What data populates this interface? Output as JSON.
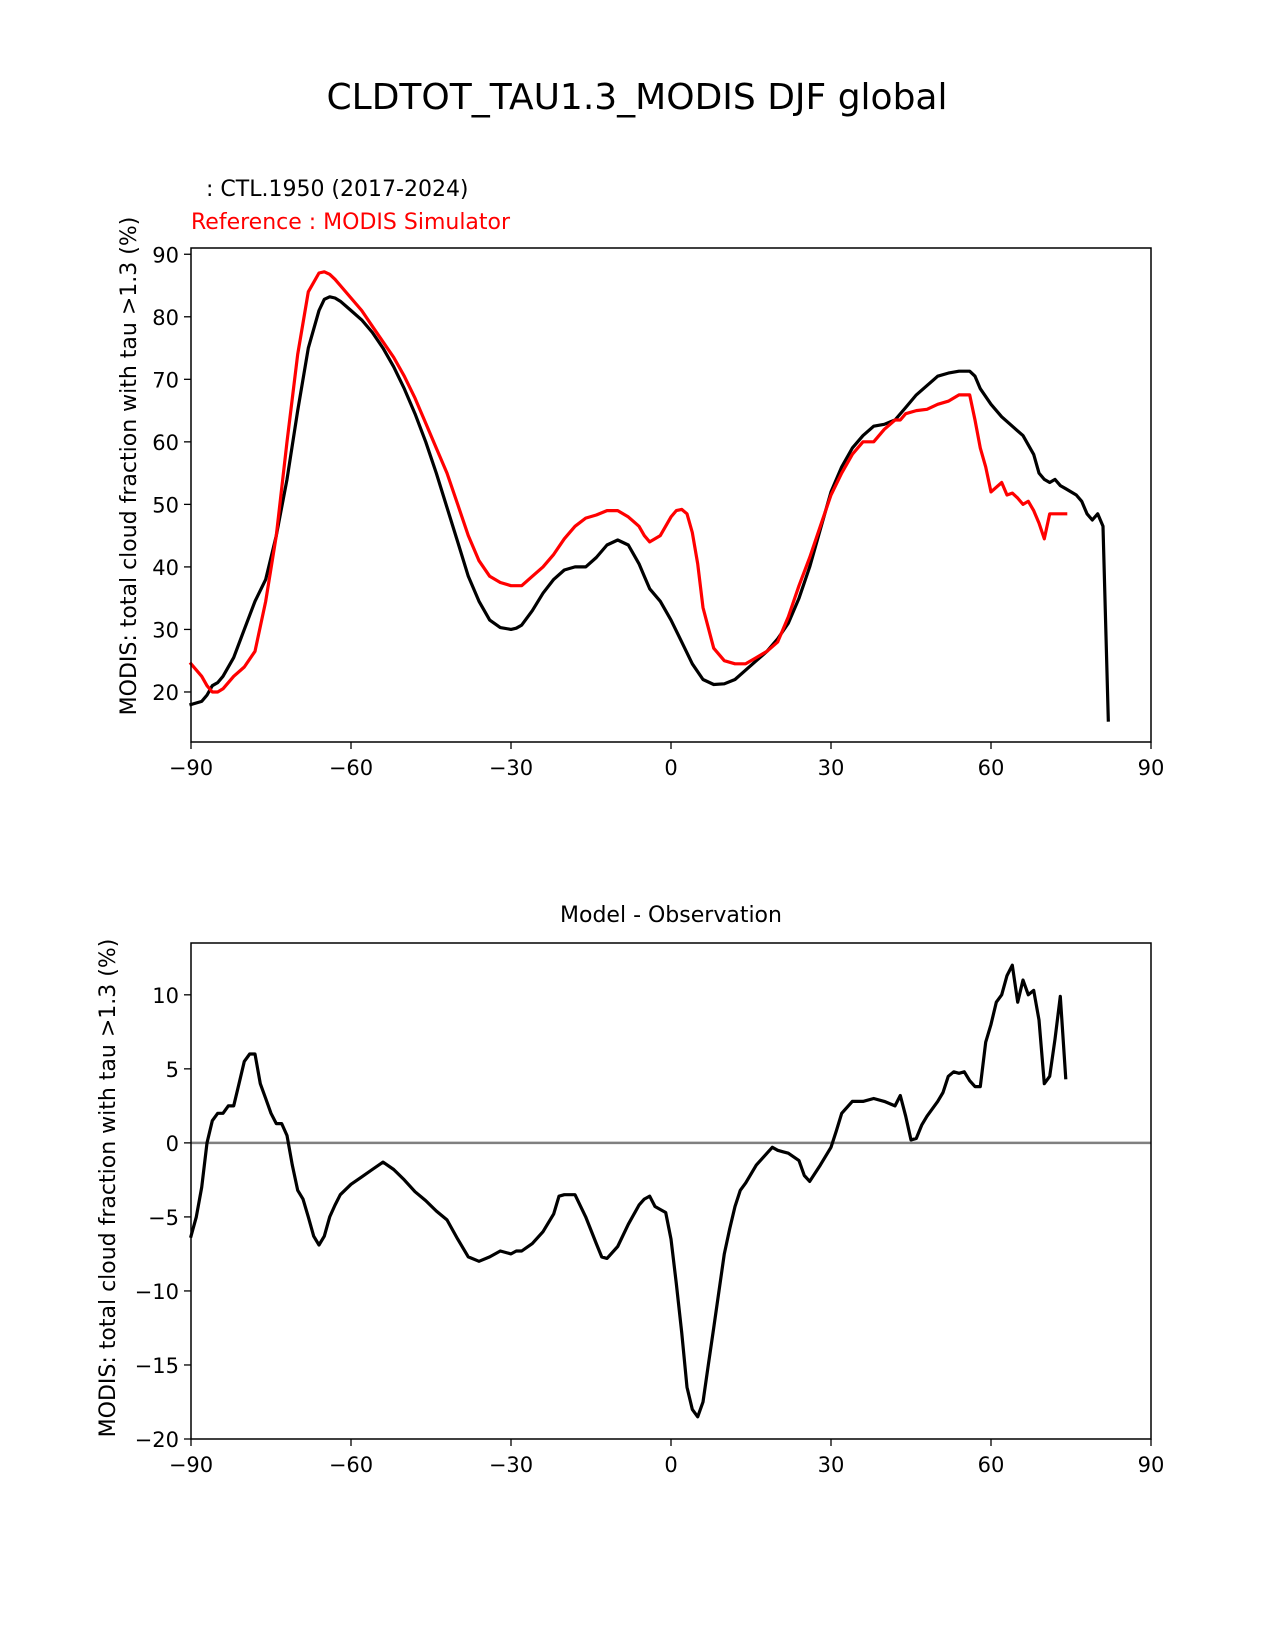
{
  "figure": {
    "title": "CLDTOT_TAU1.3_MODIS DJF global"
  },
  "colors": {
    "model": "#000000",
    "reference": "#ff0000",
    "zero_line": "#808080"
  },
  "chart_data": [
    {
      "type": "line",
      "test_label": ": CTL.1950 (2017-2024)",
      "ref_label": "Reference : MODIS Simulator",
      "title": "",
      "xlabel": "",
      "ylabel": "MODIS: total cloud fraction with tau >1.3 (%)",
      "xlim": [
        -90,
        90
      ],
      "ylim": [
        12,
        91
      ],
      "xticks": [
        -90,
        -60,
        -30,
        0,
        30,
        60,
        90
      ],
      "xtick_labels": [
        "−90",
        "−60",
        "−30",
        "0",
        "30",
        "60",
        "90"
      ],
      "yticks": [
        20,
        30,
        40,
        50,
        60,
        70,
        80,
        90
      ],
      "ytick_labels": [
        "20",
        "30",
        "40",
        "50",
        "60",
        "70",
        "80",
        "90"
      ],
      "series": [
        {
          "name": "CTL.1950 (2017-2024)",
          "color": "#000000",
          "x": [
            -90,
            -88,
            -87,
            -86,
            -85,
            -84,
            -82,
            -80,
            -78,
            -76,
            -74,
            -72,
            -70,
            -68,
            -66,
            -65,
            -64,
            -63,
            -62,
            -60,
            -58,
            -56,
            -54,
            -52,
            -50,
            -48,
            -46,
            -44,
            -42,
            -40,
            -38,
            -36,
            -34,
            -32,
            -30,
            -29,
            -28,
            -26,
            -24,
            -22,
            -20,
            -18,
            -16,
            -14,
            -12,
            -10,
            -8,
            -6,
            -5,
            -4,
            -2,
            0,
            2,
            4,
            6,
            8,
            10,
            12,
            14,
            16,
            18,
            20,
            22,
            24,
            26,
            28,
            30,
            32,
            34,
            36,
            38,
            40,
            42,
            44,
            46,
            48,
            50,
            52,
            54,
            56,
            57,
            58,
            60,
            62,
            64,
            66,
            68,
            69,
            70,
            71,
            72,
            73,
            74,
            76,
            77,
            78,
            79,
            80,
            81,
            82
          ],
          "y": [
            18,
            18.5,
            19.5,
            21,
            21.5,
            22.5,
            25.5,
            30,
            34.5,
            38,
            45,
            54,
            65,
            75,
            81,
            82.8,
            83.2,
            83,
            82.5,
            81,
            79.5,
            77.5,
            75,
            72,
            68.5,
            64.5,
            60,
            55,
            49.5,
            44,
            38.5,
            34.5,
            31.5,
            30.3,
            30,
            30.2,
            30.7,
            33,
            35.8,
            38,
            39.5,
            40,
            40,
            41.5,
            43.5,
            44.3,
            43.5,
            40.5,
            38.5,
            36.5,
            34.5,
            31.5,
            28,
            24.5,
            22,
            21.2,
            21.3,
            22,
            23.5,
            25,
            26.5,
            28.5,
            31,
            35,
            40,
            46,
            52,
            56,
            59,
            61,
            62.5,
            62.8,
            63.5,
            65.5,
            67.5,
            69,
            70.5,
            71,
            71.3,
            71.3,
            70.5,
            68.5,
            66,
            64,
            62.5,
            61,
            58,
            55,
            54,
            53.5,
            54,
            53,
            52.5,
            51.5,
            50.5,
            48.5,
            47.5,
            48.5,
            46.5,
            15.5
          ]
        },
        {
          "name": "MODIS Simulator",
          "color": "#ff0000",
          "x": [
            -90,
            -88,
            -87,
            -86,
            -85,
            -84,
            -82,
            -80,
            -78,
            -76,
            -74,
            -72,
            -70,
            -68,
            -66,
            -65,
            -64,
            -63,
            -62,
            -60,
            -58,
            -56,
            -54,
            -52,
            -50,
            -48,
            -46,
            -44,
            -42,
            -40,
            -38,
            -36,
            -34,
            -32,
            -30,
            -28,
            -26,
            -24,
            -22,
            -20,
            -18,
            -16,
            -14,
            -12,
            -10,
            -8,
            -6,
            -5,
            -4,
            -2,
            0,
            1,
            2,
            3,
            4,
            5,
            6,
            8,
            10,
            12,
            14,
            16,
            18,
            20,
            22,
            24,
            26,
            28,
            30,
            32,
            34,
            36,
            38,
            40,
            42,
            43,
            44,
            46,
            48,
            50,
            52,
            54,
            56,
            57,
            58,
            59,
            60,
            62,
            63,
            64,
            65,
            66,
            67,
            68,
            69,
            70,
            71,
            72,
            73,
            74
          ],
          "y": [
            24.5,
            22.5,
            21,
            20,
            20,
            20.5,
            22.5,
            24,
            26.5,
            34.5,
            45,
            60,
            74,
            84,
            87,
            87.2,
            86.8,
            86,
            85,
            83,
            81,
            78.5,
            76,
            73.5,
            70.5,
            67,
            63,
            59,
            55,
            50,
            45,
            41,
            38.5,
            37.5,
            37,
            37,
            38.5,
            40,
            42,
            44.5,
            46.5,
            47.8,
            48.3,
            49,
            49,
            48,
            46.5,
            45,
            44,
            45,
            48,
            49,
            49.2,
            48.5,
            45.5,
            40.5,
            33.5,
            27,
            25,
            24.5,
            24.5,
            25.5,
            26.5,
            28,
            32,
            37,
            41.5,
            46.5,
            51.5,
            55,
            58,
            60,
            60,
            62,
            63.5,
            63.5,
            64.5,
            65,
            65.2,
            66,
            66.5,
            67.5,
            67.5,
            63.5,
            59,
            56,
            52,
            53.5,
            51.5,
            51.8,
            51,
            50,
            50.5,
            49,
            47,
            44.5,
            48.5,
            48.5,
            48.5,
            48.5
          ]
        }
      ]
    },
    {
      "type": "line",
      "title": "Model - Observation",
      "xlabel": "",
      "ylabel": "MODIS: total cloud fraction with tau >1.3 (%)",
      "xlim": [
        -90,
        90
      ],
      "ylim": [
        -20,
        13.5
      ],
      "xticks": [
        -90,
        -60,
        -30,
        0,
        30,
        60,
        90
      ],
      "xtick_labels": [
        "−90",
        "−60",
        "−30",
        "0",
        "30",
        "60",
        "90"
      ],
      "yticks": [
        -20,
        -15,
        -10,
        -5,
        0,
        5,
        10
      ],
      "ytick_labels": [
        "−20",
        "−15",
        "−10",
        "−5",
        "0",
        "5",
        "10"
      ],
      "reference_line": 0,
      "series": [
        {
          "name": "Model - Observation",
          "color": "#000000",
          "x": [
            -90,
            -89,
            -88,
            -87,
            -86,
            -85,
            -84,
            -83,
            -82,
            -81,
            -80,
            -79,
            -78,
            -77,
            -76,
            -75,
            -74,
            -73,
            -72,
            -71,
            -70,
            -69,
            -68,
            -67,
            -66,
            -65,
            -64,
            -63,
            -62,
            -60,
            -58,
            -56,
            -54,
            -52,
            -50,
            -48,
            -46,
            -44,
            -42,
            -40,
            -38,
            -36,
            -34,
            -32,
            -30,
            -29,
            -28,
            -26,
            -24,
            -22,
            -21,
            -20,
            -18,
            -16,
            -14,
            -13,
            -12,
            -10,
            -8,
            -6,
            -5,
            -4,
            -3,
            -2,
            -1,
            0,
            1,
            2,
            3,
            4,
            5,
            6,
            7,
            8,
            9,
            10,
            11,
            12,
            13,
            14,
            16,
            18,
            19,
            20,
            21,
            22,
            24,
            25,
            26,
            28,
            30,
            31,
            32,
            34,
            36,
            38,
            40,
            42,
            43,
            44,
            45,
            46,
            47,
            48,
            50,
            51,
            52,
            53,
            54,
            55,
            56,
            57,
            58,
            59,
            60,
            61,
            62,
            63,
            64,
            65,
            66,
            67,
            68,
            69,
            70,
            71,
            72,
            73,
            74
          ],
          "y": [
            -6.3,
            -5,
            -3,
            0,
            1.5,
            2,
            2,
            2.5,
            2.5,
            4,
            5.5,
            6,
            6,
            4,
            3,
            2,
            1.3,
            1.3,
            0.5,
            -1.5,
            -3.2,
            -3.8,
            -5,
            -6.3,
            -6.9,
            -6.3,
            -5,
            -4.2,
            -3.5,
            -2.8,
            -2.3,
            -1.8,
            -1.3,
            -1.8,
            -2.5,
            -3.3,
            -3.9,
            -4.6,
            -5.2,
            -6.5,
            -7.7,
            -8,
            -7.7,
            -7.3,
            -7.5,
            -7.3,
            -7.3,
            -6.8,
            -6,
            -4.8,
            -3.6,
            -3.5,
            -3.5,
            -5,
            -6.8,
            -7.7,
            -7.8,
            -7,
            -5.5,
            -4.2,
            -3.8,
            -3.6,
            -4.3,
            -4.5,
            -4.7,
            -6.5,
            -9.5,
            -12.8,
            -16.5,
            -18,
            -18.5,
            -17.5,
            -15,
            -12.5,
            -10,
            -7.5,
            -5.8,
            -4.3,
            -3.2,
            -2.7,
            -1.5,
            -0.7,
            -0.3,
            -0.5,
            -0.6,
            -0.7,
            -1.2,
            -2.2,
            -2.6,
            -1.5,
            -0.3,
            0.8,
            2,
            2.8,
            2.8,
            3,
            2.8,
            2.5,
            3.2,
            1.8,
            0.2,
            0.3,
            1.2,
            1.8,
            2.8,
            3.4,
            4.5,
            4.8,
            4.7,
            4.8,
            4.2,
            3.8,
            3.8,
            6.8,
            8,
            9.5,
            10,
            11.3,
            12,
            9.5,
            11,
            10,
            10.3,
            8.3,
            4,
            4.5,
            7,
            9.9,
            4.4
          ]
        }
      ]
    }
  ]
}
